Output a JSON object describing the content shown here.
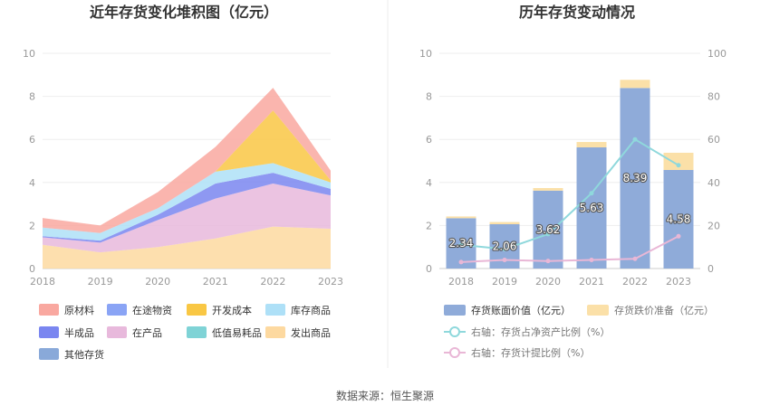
{
  "left_chart": {
    "title": "近年存货变化堆积图（亿元）",
    "legend": [
      {
        "label": "原材料",
        "color": "#f9a8a0"
      },
      {
        "label": "在途物资",
        "color": "#8aa4f5"
      },
      {
        "label": "开发成本",
        "color": "#f9c744"
      },
      {
        "label": "库存商品",
        "color": "#aee0f7"
      },
      {
        "label": "半成品",
        "color": "#7a86f0"
      },
      {
        "label": "在产品",
        "color": "#e8b9dc"
      },
      {
        "label": "低值易耗品",
        "color": "#7fd3d6"
      },
      {
        "label": "发出商品",
        "color": "#fdd9a0"
      },
      {
        "label": "其他存货",
        "color": "#89a9d9"
      }
    ]
  },
  "right_chart": {
    "title": "历年存货变动情况",
    "legend": {
      "bar_book": "存货账面价值（亿元）",
      "bar_impair": "存货跌价准备（亿元）",
      "line_ratio": "右轴：存货占净资产比例（%）",
      "line_provision": "右轴：存货计提比例（%）"
    }
  },
  "source": "数据来源：恒生聚源",
  "chart_data": [
    {
      "type": "area",
      "title": "近年存货变化堆积图（亿元）",
      "x": [
        "2018",
        "2019",
        "2020",
        "2021",
        "2022",
        "2023"
      ],
      "ylim": [
        0,
        10
      ],
      "yticks": [
        0,
        2,
        4,
        6,
        8,
        10
      ],
      "stacked": true,
      "series": [
        {
          "name": "发出商品",
          "color": "#fdd9a0",
          "values": [
            1.1,
            0.75,
            1.0,
            1.4,
            1.95,
            1.85
          ]
        },
        {
          "name": "在产品",
          "color": "#e8b9dc",
          "values": [
            0.35,
            0.45,
            1.25,
            1.85,
            2.0,
            1.55
          ]
        },
        {
          "name": "半成品",
          "color": "#7a86f0",
          "values": [
            0.05,
            0.1,
            0.25,
            0.7,
            0.5,
            0.3
          ]
        },
        {
          "name": "库存商品",
          "color": "#aee0f7",
          "values": [
            0.4,
            0.35,
            0.3,
            0.55,
            0.45,
            0.3
          ]
        },
        {
          "name": "开发成本",
          "color": "#f9c744",
          "values": [
            0,
            0,
            0,
            0,
            2.45,
            0.1
          ]
        },
        {
          "name": "原材料",
          "color": "#f9a8a0",
          "values": [
            0.45,
            0.35,
            0.75,
            1.15,
            1.05,
            0.45
          ]
        }
      ]
    },
    {
      "type": "bar",
      "title": "历年存货变动情况",
      "categories": [
        "2018",
        "2019",
        "2020",
        "2021",
        "2022",
        "2023"
      ],
      "ylim": [
        0,
        10
      ],
      "yticks": [
        0,
        2,
        4,
        6,
        8,
        10
      ],
      "y2lim": [
        0,
        100
      ],
      "y2ticks": [
        0,
        20,
        40,
        60,
        80,
        100
      ],
      "series": [
        {
          "name": "存货账面价值（亿元）",
          "color": "#8fabd9",
          "values": [
            2.34,
            2.06,
            3.62,
            5.63,
            8.39,
            4.58
          ],
          "labels": [
            "2.34",
            "2.06",
            "3.62",
            "5.63",
            "8.39",
            "4.58"
          ]
        },
        {
          "name": "存货跌价准备（亿元）",
          "color": "#fbe0a8",
          "values": [
            0.08,
            0.1,
            0.12,
            0.25,
            0.38,
            0.8
          ]
        }
      ],
      "lines": [
        {
          "name": "右轴：存货占净资产比例（%）",
          "color": "#8fd8dc",
          "axis": "right",
          "values": [
            11,
            9,
            16,
            35,
            60,
            48
          ]
        },
        {
          "name": "右轴：存货计提比例（%）",
          "color": "#e9b7d6",
          "axis": "right",
          "values": [
            3,
            4,
            3.5,
            4,
            4.5,
            15
          ]
        }
      ]
    }
  ]
}
